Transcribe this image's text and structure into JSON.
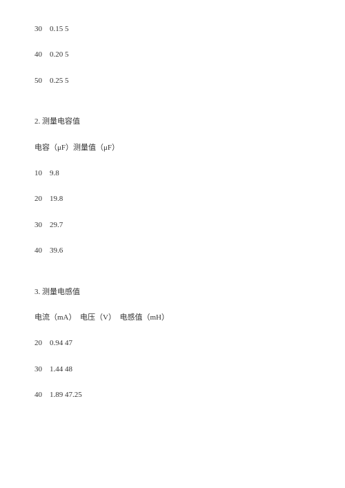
{
  "section1": {
    "rows": [
      {
        "c1": "30",
        "c2": "0.15",
        "c3": "5"
      },
      {
        "c1": "40",
        "c2": "0.20",
        "c3": "5"
      },
      {
        "c1": "50",
        "c2": "0.25",
        "c3": "5"
      }
    ]
  },
  "section2": {
    "title": "2. 测量电容值",
    "header": "电容（μF）测量值（μF）",
    "rows": [
      {
        "c1": "10",
        "c2": "9.8"
      },
      {
        "c1": "20",
        "c2": "19.8"
      },
      {
        "c1": "30",
        "c2": "29.7"
      },
      {
        "c1": "40",
        "c2": "39.6"
      }
    ]
  },
  "section3": {
    "title": "3. 测量电感值",
    "header": "电流（mA）  电压（V）  电感值（mH）",
    "rows": [
      {
        "c1": "20",
        "c2": "0.94",
        "c3": "47"
      },
      {
        "c1": "30",
        "c2": "1.44",
        "c3": "48"
      },
      {
        "c1": "40",
        "c2": "1.89",
        "c3": "47.25"
      }
    ]
  },
  "styling": {
    "font_family": "SimSun",
    "font_size_pt": 11,
    "text_color": "#333333",
    "background_color": "#ffffff",
    "line_spacing": 22
  }
}
